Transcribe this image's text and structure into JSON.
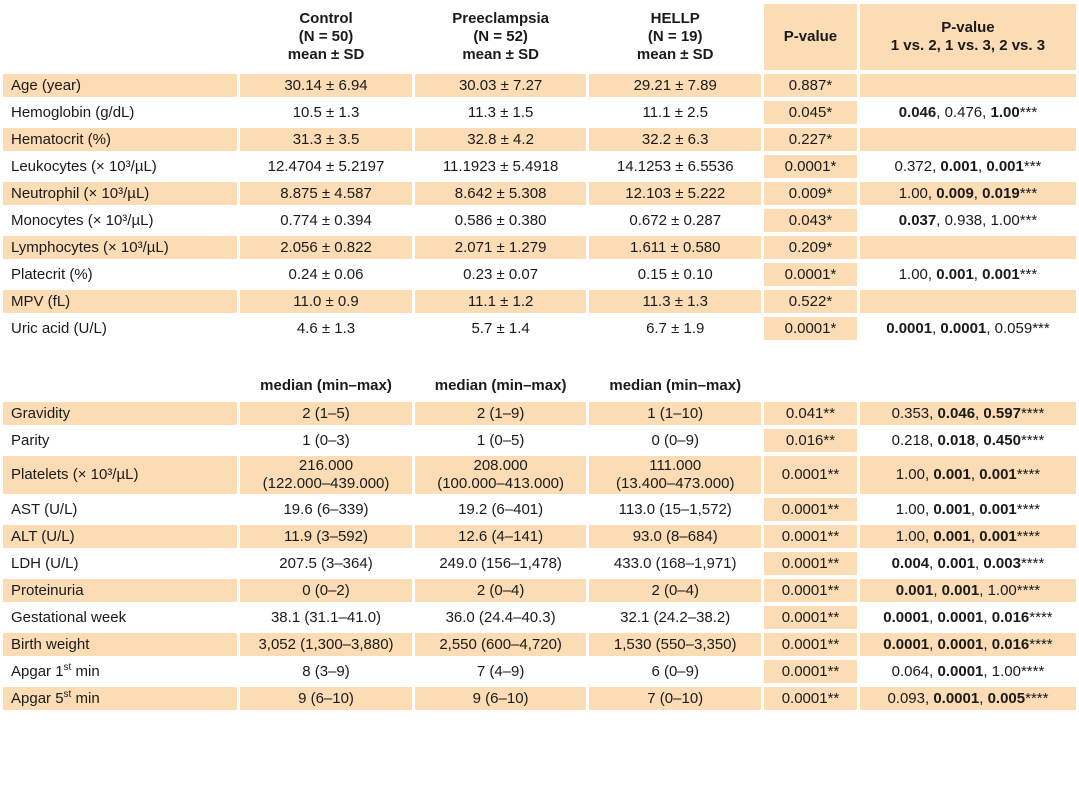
{
  "header": {
    "groups": [
      {
        "name": "Control",
        "n": "(N = 50)",
        "stat": "mean ± SD"
      },
      {
        "name": "Preeclampsia",
        "n": "(N = 52)",
        "stat": "mean ± SD"
      },
      {
        "name": "HELLP",
        "n": "(N = 19)",
        "stat": "mean ± SD"
      }
    ],
    "pvalue": "P-value",
    "pvalue_cmp_line1": "P-value",
    "pvalue_cmp_line2": "1 vs. 2, 1 vs. 3, 2 vs. 3"
  },
  "mean_rows": [
    {
      "label": "Age (year)",
      "c": "30.14 ± 6.94",
      "p": "30.03 ± 7.27",
      "h": "29.21 ± 7.89",
      "pv": "0.887*",
      "cmp": []
    },
    {
      "label": "Hemoglobin (g/dL)",
      "c": "10.5 ± 1.3",
      "p": "11.3 ± 1.5",
      "h": "11.1 ± 2.5",
      "pv": "0.045*",
      "cmp": [
        [
          "0.046",
          true
        ],
        [
          "0.476",
          false
        ],
        [
          "1.00",
          true
        ]
      ],
      "suffix": "***"
    },
    {
      "label": "Hematocrit (%)",
      "c": "31.3 ± 3.5",
      "p": "32.8 ± 4.2",
      "h": "32.2 ± 6.3",
      "pv": "0.227*",
      "cmp": []
    },
    {
      "label": "Leukocytes (× 10³/µL)",
      "c": "12.4704 ± 5.2197",
      "p": "11.1923 ± 5.4918",
      "h": "14.1253 ± 6.5536",
      "pv": "0.0001*",
      "cmp": [
        [
          "0.372",
          false
        ],
        [
          "0.001",
          true
        ],
        [
          "0.001",
          true
        ]
      ],
      "suffix": "***"
    },
    {
      "label": "Neutrophil (× 10³/µL)",
      "c": "8.875 ± 4.587",
      "p": "8.642 ± 5.308",
      "h": "12.103 ± 5.222",
      "pv": "0.009*",
      "cmp": [
        [
          "1.00",
          false
        ],
        [
          "0.009",
          true
        ],
        [
          "0.019",
          true
        ]
      ],
      "suffix": "***"
    },
    {
      "label": "Monocytes (× 10³/µL)",
      "c": "0.774 ± 0.394",
      "p": "0.586 ± 0.380",
      "h": "0.672 ± 0.287",
      "pv": "0.043*",
      "cmp": [
        [
          "0.037",
          true
        ],
        [
          "0.938",
          false
        ],
        [
          "1.00",
          false
        ]
      ],
      "suffix": "***"
    },
    {
      "label": "Lymphocytes (× 10³/µL)",
      "c": "2.056 ± 0.822",
      "p": "2.071 ± 1.279",
      "h": "1.611 ± 0.580",
      "pv": "0.209*",
      "cmp": []
    },
    {
      "label": "Platecrit (%)",
      "c": "0.24 ± 0.06",
      "p": "0.23 ± 0.07",
      "h": "0.15 ± 0.10",
      "pv": "0.0001*",
      "cmp": [
        [
          "1.00",
          false
        ],
        [
          "0.001",
          true
        ],
        [
          "0.001",
          true
        ]
      ],
      "suffix": "***"
    },
    {
      "label": "MPV (fL)",
      "c": "11.0 ± 0.9",
      "p": "11.1 ± 1.2",
      "h": "11.3 ± 1.3",
      "pv": "0.522*",
      "cmp": []
    },
    {
      "label": "Uric acid (U/L)",
      "c": "4.6 ± 1.3",
      "p": "5.7 ± 1.4",
      "h": "6.7 ± 1.9",
      "pv": "0.0001*",
      "cmp": [
        [
          "0.0001",
          true
        ],
        [
          "0.0001",
          true
        ],
        [
          "0.059",
          false
        ]
      ],
      "suffix": "***"
    }
  ],
  "median_header": {
    "c": "median (min–max)",
    "p": "median (min–max)",
    "h": "median (min–max)"
  },
  "median_rows": [
    {
      "label": "Gravidity",
      "c": "2 (1–5)",
      "p": "2 (1–9)",
      "h": "1 (1–10)",
      "pv": "0.041**",
      "cmp": [
        [
          "0.353",
          false
        ],
        [
          "0.046",
          true
        ],
        [
          "0.597",
          true
        ]
      ],
      "suffix": "****"
    },
    {
      "label": "Parity",
      "c": "1 (0–3)",
      "p": "1 (0–5)",
      "h": "0 (0–9)",
      "pv": "0.016**",
      "cmp": [
        [
          "0.218",
          false
        ],
        [
          "0.018",
          true
        ],
        [
          "0.450",
          true
        ]
      ],
      "suffix": "****"
    },
    {
      "label": "Platelets (× 10³/µL)",
      "c": "216.000",
      "c2": "(122.000–439.000)",
      "p": "208.000",
      "p2": "(100.000–413.000)",
      "h": "111.000",
      "h2": "(13.400–473.000)",
      "pv": "0.0001**",
      "cmp": [
        [
          "1.00",
          false
        ],
        [
          "0.001",
          true
        ],
        [
          "0.001",
          true
        ]
      ],
      "suffix": "****"
    },
    {
      "label": "AST (U/L)",
      "c": "19.6 (6–339)",
      "p": "19.2 (6–401)",
      "h": "113.0 (15–1,572)",
      "pv": "0.0001**",
      "cmp": [
        [
          "1.00",
          false
        ],
        [
          "0.001",
          true
        ],
        [
          "0.001",
          true
        ]
      ],
      "suffix": "****"
    },
    {
      "label": "ALT (U/L)",
      "c": "11.9 (3–592)",
      "p": "12.6 (4–141)",
      "h": "93.0 (8–684)",
      "pv": "0.0001**",
      "cmp": [
        [
          "1.00",
          false
        ],
        [
          "0.001",
          true
        ],
        [
          "0.001",
          true
        ]
      ],
      "suffix": "****"
    },
    {
      "label": "LDH (U/L)",
      "c": "207.5 (3–364)",
      "p": "249.0 (156–1,478)",
      "h": "433.0 (168–1,971)",
      "pv": "0.0001**",
      "cmp": [
        [
          "0.004",
          true
        ],
        [
          "0.001",
          true
        ],
        [
          "0.003",
          true
        ]
      ],
      "suffix": "****"
    },
    {
      "label": "Proteinuria",
      "c": "0 (0–2)",
      "p": "2 (0–4)",
      "h": "2 (0–4)",
      "pv": "0.0001**",
      "cmp": [
        [
          "0.001",
          true
        ],
        [
          "0.001",
          true
        ],
        [
          "1.00",
          false
        ]
      ],
      "suffix": "****"
    },
    {
      "label": "Gestational week",
      "c": "38.1 (31.1–41.0)",
      "p": "36.0 (24.4–40.3)",
      "h": "32.1 (24.2–38.2)",
      "pv": "0.0001**",
      "cmp": [
        [
          "0.0001",
          true
        ],
        [
          "0.0001",
          true
        ],
        [
          "0.016",
          true
        ]
      ],
      "suffix": "****"
    },
    {
      "label": "Birth weight",
      "c": "3,052 (1,300–3,880)",
      "p": "2,550 (600–4,720)",
      "h": "1,530 (550–3,350)",
      "pv": "0.0001**",
      "cmp": [
        [
          "0.0001",
          true
        ],
        [
          "0.0001",
          true
        ],
        [
          "0.016",
          true
        ]
      ],
      "suffix": "****"
    },
    {
      "label": "Apgar 1st min",
      "label_base": "Apgar 1",
      "label_sup": "st",
      "label_rest": " min",
      "c": "8 (3–9)",
      "p": "7 (4–9)",
      "h": "6 (0–9)",
      "pv": "0.0001**",
      "cmp": [
        [
          "0.064",
          false
        ],
        [
          "0.0001",
          true
        ],
        [
          "1.00",
          false
        ]
      ],
      "suffix": "****"
    },
    {
      "label": "Apgar 5st min",
      "label_base": "Apgar 5",
      "label_sup": "st",
      "label_rest": " min",
      "c": "9 (6–10)",
      "p": "9 (6–10)",
      "h": "7 (0–10)",
      "pv": "0.0001**",
      "cmp": [
        [
          "0.093",
          false
        ],
        [
          "0.0001",
          true
        ],
        [
          "0.005",
          true
        ]
      ],
      "suffix": "****"
    }
  ]
}
